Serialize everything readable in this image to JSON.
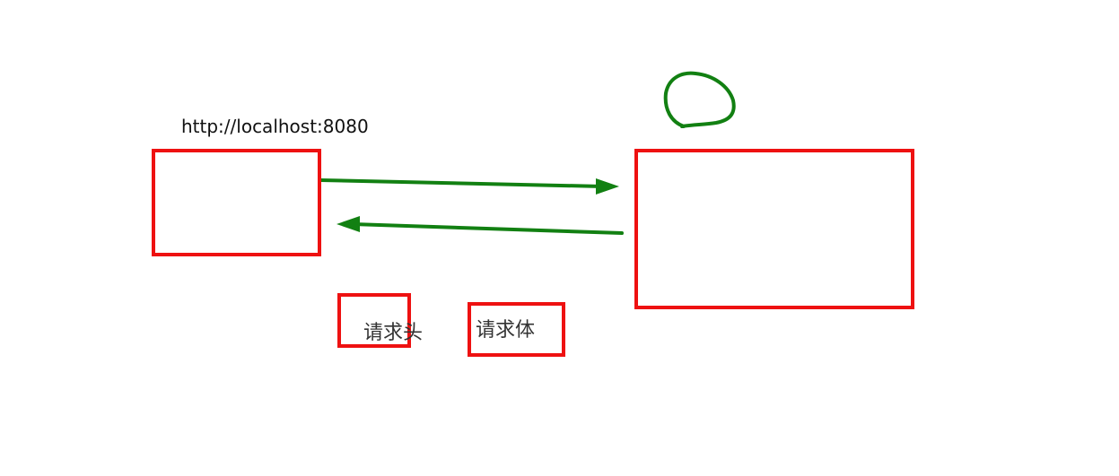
{
  "diagram": {
    "url_label": "http://localhost:8080",
    "request_header_label": "请求头",
    "request_body_label": "请求体",
    "colors": {
      "box": "#ee1111",
      "arrow": "#128012",
      "scribble": "#128012",
      "text": "#333333"
    }
  }
}
